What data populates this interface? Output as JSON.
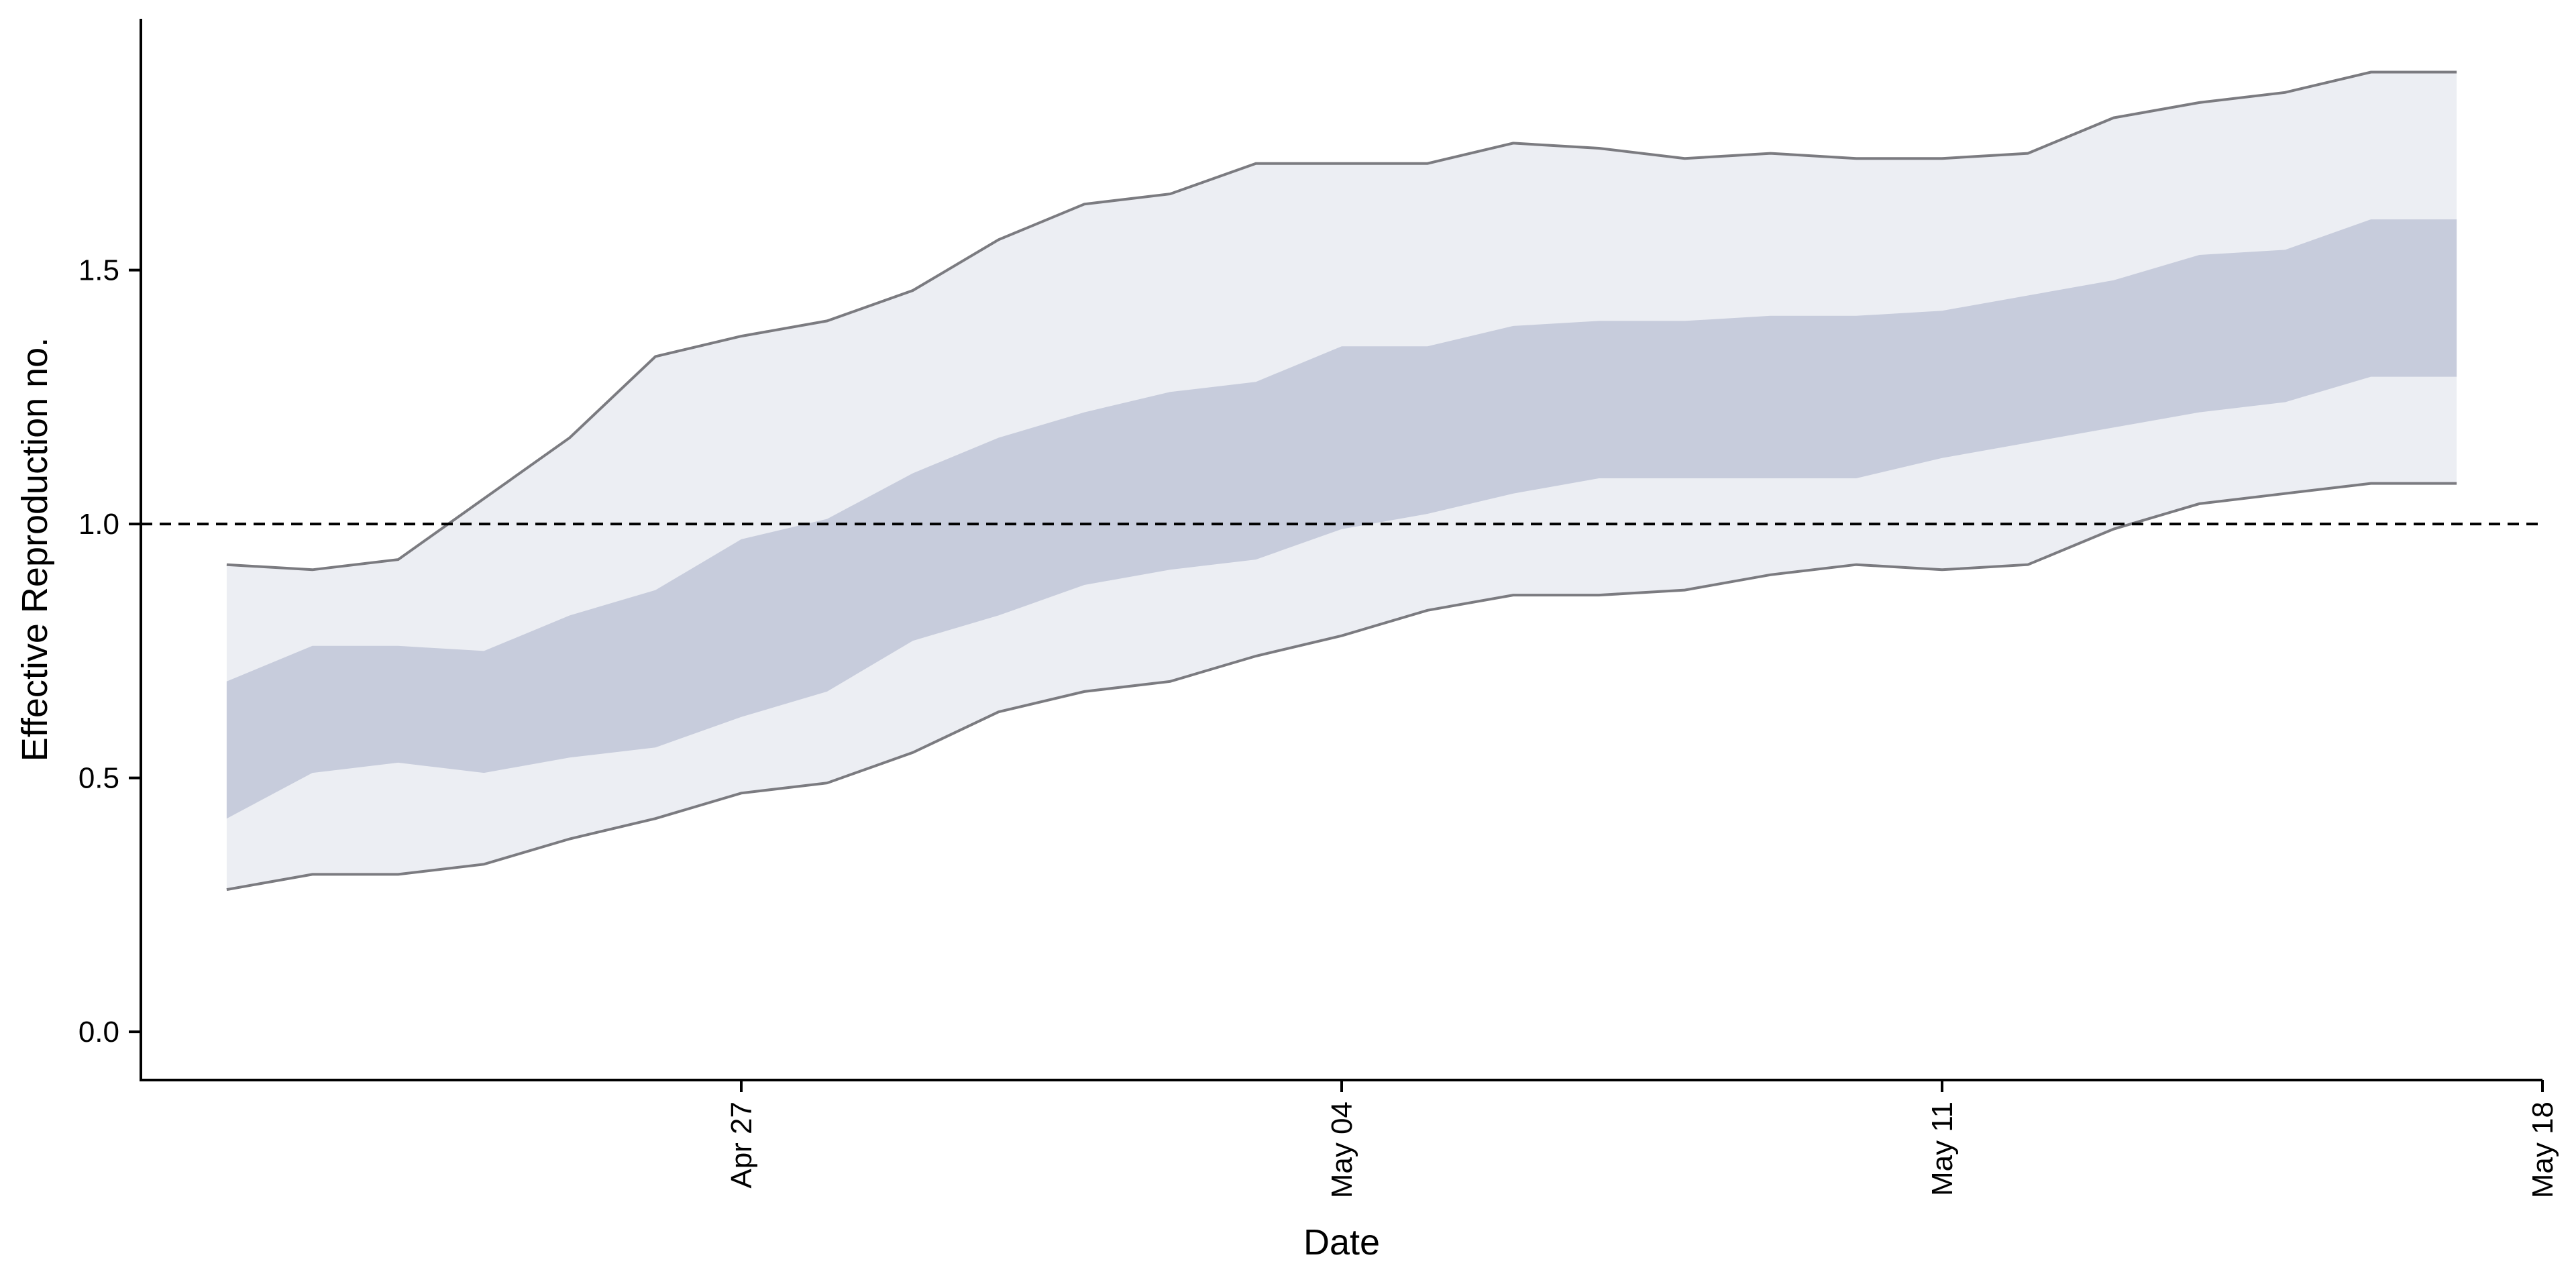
{
  "chart_data": {
    "type": "area",
    "title": "",
    "xlabel": "Date",
    "ylabel": "Effective Reproduction no.",
    "ylim": [
      -0.095,
      1.995
    ],
    "xlim": [
      "2021-04-20",
      "2021-05-18"
    ],
    "y_ticks": [
      {
        "value": 0.0,
        "label": "0.0"
      },
      {
        "value": 0.5,
        "label": "0.5"
      },
      {
        "value": 1.0,
        "label": "1.0"
      },
      {
        "value": 1.5,
        "label": "1.5"
      }
    ],
    "x_ticks": [
      {
        "date": "2021-04-27",
        "label": "Apr 27"
      },
      {
        "date": "2021-05-04",
        "label": "May 04"
      },
      {
        "date": "2021-05-11",
        "label": "May 11"
      },
      {
        "date": "2021-05-18",
        "label": "May 18"
      }
    ],
    "reference_line": {
      "value": 1.0,
      "style": "dashed",
      "color": "#000000"
    },
    "grid": false,
    "dates": [
      "2021-04-21",
      "2021-04-22",
      "2021-04-23",
      "2021-04-24",
      "2021-04-25",
      "2021-04-26",
      "2021-04-27",
      "2021-04-28",
      "2021-04-29",
      "2021-04-30",
      "2021-05-01",
      "2021-05-02",
      "2021-05-03",
      "2021-05-04",
      "2021-05-05",
      "2021-05-06",
      "2021-05-07",
      "2021-05-08",
      "2021-05-09",
      "2021-05-10",
      "2021-05-11",
      "2021-05-12",
      "2021-05-13",
      "2021-05-14",
      "2021-05-15",
      "2021-05-16",
      "2021-05-17"
    ],
    "series": [
      {
        "band": "outer",
        "color": "#eceef3",
        "upper": [
          0.92,
          0.91,
          0.93,
          1.05,
          1.17,
          1.33,
          1.37,
          1.4,
          1.46,
          1.56,
          1.63,
          1.65,
          1.71,
          1.71,
          1.71,
          1.75,
          1.74,
          1.72,
          1.73,
          1.72,
          1.72,
          1.73,
          1.8,
          1.83,
          1.85,
          1.89,
          1.89
        ],
        "lower": [
          0.28,
          0.31,
          0.31,
          0.33,
          0.38,
          0.42,
          0.47,
          0.49,
          0.55,
          0.63,
          0.67,
          0.69,
          0.74,
          0.78,
          0.83,
          0.86,
          0.86,
          0.87,
          0.9,
          0.92,
          0.91,
          0.92,
          0.99,
          1.04,
          1.06,
          1.08,
          1.08
        ]
      },
      {
        "band": "inner",
        "color": "#c7ccdc",
        "upper": [
          0.69,
          0.76,
          0.76,
          0.75,
          0.82,
          0.87,
          0.97,
          1.01,
          1.1,
          1.17,
          1.22,
          1.26,
          1.28,
          1.35,
          1.35,
          1.39,
          1.4,
          1.4,
          1.41,
          1.41,
          1.42,
          1.45,
          1.48,
          1.53,
          1.54,
          1.6,
          1.6
        ],
        "lower": [
          0.42,
          0.51,
          0.53,
          0.51,
          0.54,
          0.56,
          0.62,
          0.67,
          0.77,
          0.82,
          0.88,
          0.91,
          0.93,
          0.99,
          1.02,
          1.06,
          1.09,
          1.09,
          1.09,
          1.09,
          1.13,
          1.16,
          1.19,
          1.22,
          1.24,
          1.29,
          1.29
        ]
      }
    ]
  }
}
